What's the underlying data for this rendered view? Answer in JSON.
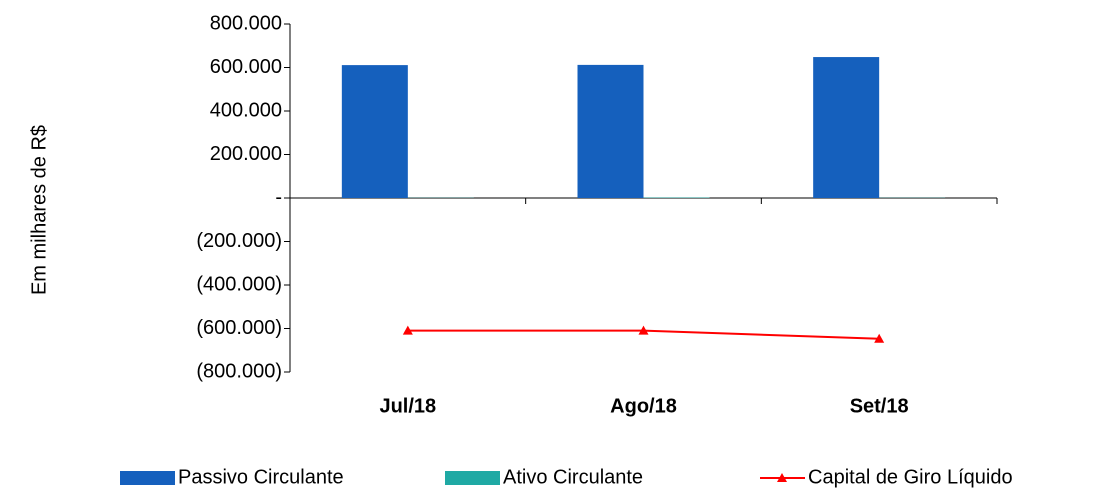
{
  "chart_data": {
    "type": "bar-line",
    "y_label": "Em milhares de R$",
    "categories": [
      "Jul/18",
      "Ago/18",
      "Set/18"
    ],
    "series": [
      {
        "name": "Passivo Circulante",
        "color": "#1560bd",
        "type": "bar",
        "values": [
          611000,
          612000,
          648000
        ]
      },
      {
        "name": "Ativo Circulante",
        "color": "#1fa9a4",
        "type": "bar",
        "values": [
          1000,
          2000,
          1000
        ]
      },
      {
        "name": "Capital de Giro Líquido",
        "color": "#ff0000",
        "type": "line",
        "values": [
          -610000,
          -610000,
          -647000
        ]
      }
    ],
    "ylim": [
      -800000,
      800000
    ],
    "yticks": [
      {
        "value": 800000,
        "label": "800.000"
      },
      {
        "value": 600000,
        "label": "600.000"
      },
      {
        "value": 400000,
        "label": "400.000"
      },
      {
        "value": 200000,
        "label": "200.000"
      },
      {
        "value": 0,
        "label": "-"
      },
      {
        "value": -200000,
        "label": "(200.000)"
      },
      {
        "value": -400000,
        "label": "(400.000)"
      },
      {
        "value": -600000,
        "label": "(600.000)"
      },
      {
        "value": -800000,
        "label": "(800.000)"
      }
    ],
    "grid": false,
    "legend": "bottom"
  }
}
